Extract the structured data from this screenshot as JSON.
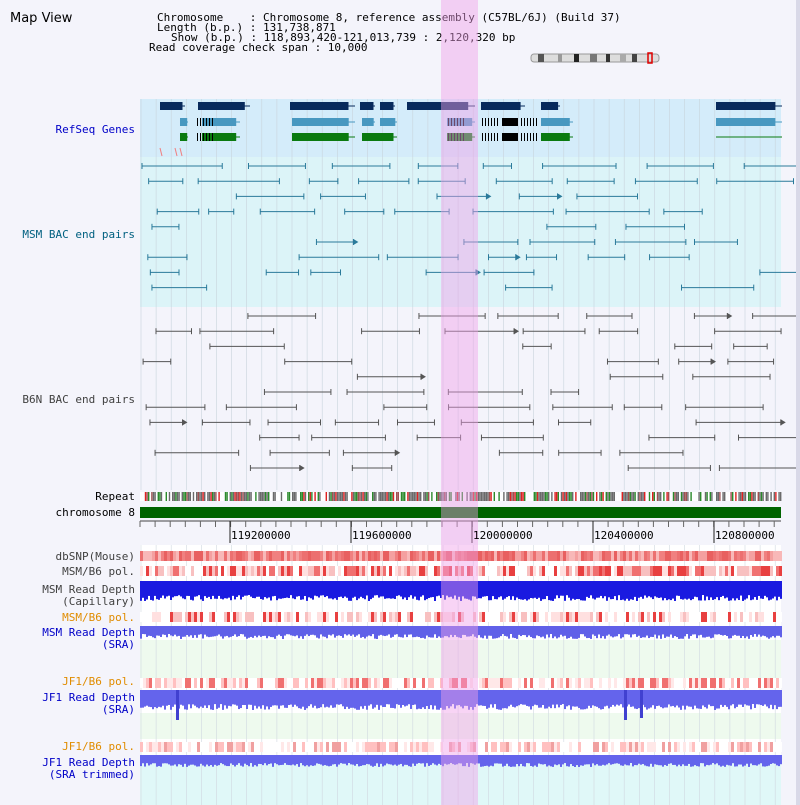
{
  "title": "Map View",
  "header": {
    "chromosome": "Chromosome    : Chromosome 8, reference assembly (C57BL/6J) (Build 37)",
    "length": "Length (b.p.) : 131,738,871",
    "show": "Show (b.p.) : 118,893,420-121,013,739 : 2,120,320 bp",
    "coverage": "Read coverage check span : 10,000"
  },
  "tracks": {
    "refseq": "RefSeq Genes",
    "msm_bac": "MSM BAC end pairs",
    "b6n_bac": "B6N BAC end pairs",
    "repeat": "Repeat",
    "chromosome": "chromosome 8",
    "dbsnp": "dbSNP(Mouse)",
    "msm_b6_pol": "MSM/B6 pol.",
    "msm_depth_cap_1": "MSM Read Depth",
    "msm_depth_cap_2": "(Capillary)",
    "msm_b6_pol2": "MSM/B6 pol.",
    "msm_depth_sra_1": "MSM Read Depth",
    "msm_depth_sra_2": "(SRA)",
    "jf1_b6_pol": "JF1/B6 pol.",
    "jf1_depth_sra_1": "JF1 Read Depth",
    "jf1_depth_sra_2": "(SRA)",
    "jf1_b6_pol2": "JF1/B6 pol.",
    "jf1_depth_trim_1": "JF1 Read Depth",
    "jf1_depth_trim_2": "(SRA trimmed)"
  },
  "axis": {
    "ticks": [
      "119200000",
      "119600000",
      "120000000",
      "120400000",
      "120800000"
    ]
  },
  "colors": {
    "refseq_label": "#0000c8",
    "msm_label": "#006080",
    "b6n_label": "#404040",
    "orange_label": "#e08c00",
    "blue_label": "#0000c8",
    "highlight": "#f8c8f0",
    "chromosome_bar": "#006400"
  }
}
